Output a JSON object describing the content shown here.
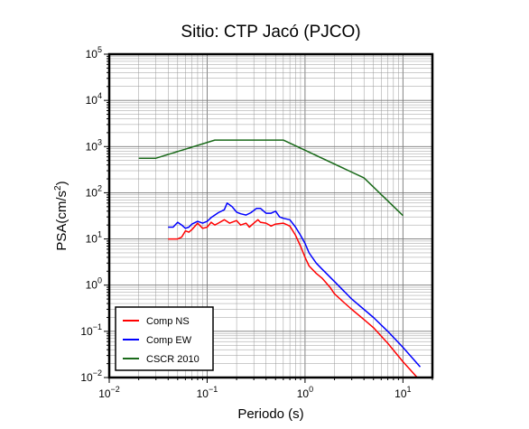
{
  "chart_data": {
    "type": "line",
    "title": "Sitio: CTP Jacó (PJCO)",
    "xlabel": "Periodo (s)",
    "ylabel_base": "PSA(cm/s",
    "ylabel_sup": "2",
    "ylabel_end": ")",
    "x_scale": "log",
    "y_scale": "log",
    "xlim": [
      0.01,
      20
    ],
    "ylim": [
      0.01,
      100000
    ],
    "grid": true,
    "legend_position": "bottom-left",
    "x_ticks": [
      {
        "value": 0.01,
        "base": "10",
        "exp": "−2"
      },
      {
        "value": 0.1,
        "base": "10",
        "exp": "−1"
      },
      {
        "value": 1,
        "base": "10",
        "exp": "0"
      },
      {
        "value": 10,
        "base": "10",
        "exp": "1"
      }
    ],
    "y_ticks": [
      {
        "value": 0.01,
        "base": "10",
        "exp": "−2"
      },
      {
        "value": 0.1,
        "base": "10",
        "exp": "−1"
      },
      {
        "value": 1,
        "base": "10",
        "exp": "0"
      },
      {
        "value": 10,
        "base": "10",
        "exp": "1"
      },
      {
        "value": 100,
        "base": "10",
        "exp": "2"
      },
      {
        "value": 1000,
        "base": "10",
        "exp": "3"
      },
      {
        "value": 10000,
        "base": "10",
        "exp": "4"
      },
      {
        "value": 100000,
        "base": "10",
        "exp": "5"
      }
    ],
    "series": [
      {
        "name": "Comp NS",
        "color": "#ff0000",
        "points": [
          [
            0.04,
            10
          ],
          [
            0.05,
            10
          ],
          [
            0.055,
            11
          ],
          [
            0.06,
            15
          ],
          [
            0.065,
            14
          ],
          [
            0.07,
            16
          ],
          [
            0.08,
            22
          ],
          [
            0.09,
            17
          ],
          [
            0.1,
            18
          ],
          [
            0.11,
            23
          ],
          [
            0.12,
            20
          ],
          [
            0.13,
            22
          ],
          [
            0.15,
            26
          ],
          [
            0.17,
            22
          ],
          [
            0.2,
            25
          ],
          [
            0.22,
            20
          ],
          [
            0.25,
            22
          ],
          [
            0.27,
            18
          ],
          [
            0.3,
            22
          ],
          [
            0.33,
            26
          ],
          [
            0.35,
            23
          ],
          [
            0.4,
            22
          ],
          [
            0.45,
            19
          ],
          [
            0.5,
            21
          ],
          [
            0.6,
            22
          ],
          [
            0.7,
            19
          ],
          [
            0.8,
            12
          ],
          [
            0.9,
            7
          ],
          [
            1,
            4
          ],
          [
            1.1,
            2.6
          ],
          [
            1.3,
            1.8
          ],
          [
            1.5,
            1.4
          ],
          [
            1.8,
            0.9
          ],
          [
            2,
            0.65
          ],
          [
            2.5,
            0.42
          ],
          [
            3,
            0.3
          ],
          [
            4,
            0.18
          ],
          [
            5,
            0.12
          ],
          [
            7,
            0.055
          ],
          [
            10,
            0.022
          ],
          [
            14,
            0.01
          ]
        ]
      },
      {
        "name": "Comp EW",
        "color": "#0000ff",
        "points": [
          [
            0.04,
            18
          ],
          [
            0.045,
            18
          ],
          [
            0.05,
            23
          ],
          [
            0.055,
            20
          ],
          [
            0.06,
            17
          ],
          [
            0.065,
            18
          ],
          [
            0.07,
            21
          ],
          [
            0.08,
            24
          ],
          [
            0.09,
            22
          ],
          [
            0.1,
            24
          ],
          [
            0.11,
            29
          ],
          [
            0.12,
            33
          ],
          [
            0.13,
            37
          ],
          [
            0.15,
            43
          ],
          [
            0.16,
            60
          ],
          [
            0.18,
            50
          ],
          [
            0.2,
            38
          ],
          [
            0.22,
            35
          ],
          [
            0.25,
            33
          ],
          [
            0.28,
            37
          ],
          [
            0.32,
            46
          ],
          [
            0.35,
            46
          ],
          [
            0.4,
            36
          ],
          [
            0.45,
            36
          ],
          [
            0.5,
            40
          ],
          [
            0.55,
            30
          ],
          [
            0.6,
            28
          ],
          [
            0.7,
            26
          ],
          [
            0.8,
            18
          ],
          [
            0.9,
            12
          ],
          [
            1,
            8
          ],
          [
            1.1,
            5
          ],
          [
            1.3,
            3
          ],
          [
            1.5,
            2.2
          ],
          [
            2,
            1.2
          ],
          [
            3,
            0.5
          ],
          [
            5,
            0.2
          ],
          [
            7,
            0.1
          ],
          [
            10,
            0.045
          ],
          [
            15,
            0.017
          ]
        ]
      },
      {
        "name": "CSCR 2010",
        "color": "#1a6a1a",
        "points": [
          [
            0.02,
            560
          ],
          [
            0.03,
            560
          ],
          [
            0.12,
            1380
          ],
          [
            0.6,
            1380
          ],
          [
            4,
            210
          ],
          [
            10,
            32
          ]
        ]
      }
    ]
  }
}
